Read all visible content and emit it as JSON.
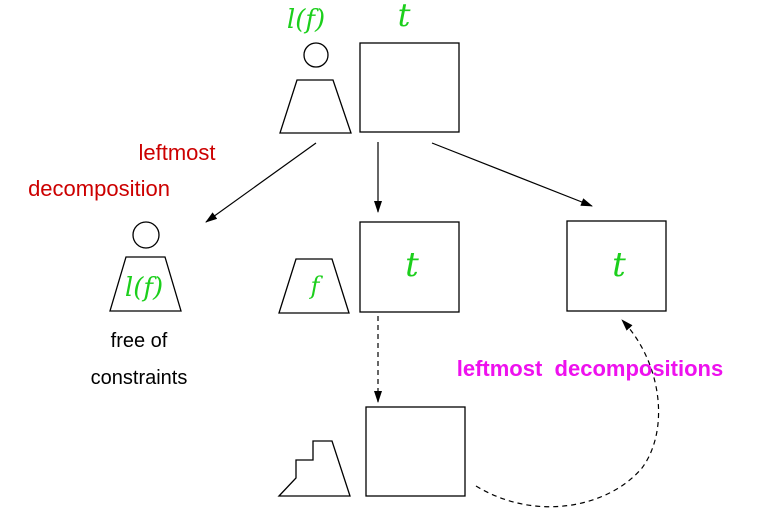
{
  "top_node": {
    "label_lf": "l(f)",
    "label_t": "t"
  },
  "left_branch": {
    "label_line1": "leftmost",
    "label_line2": "decomposition",
    "node_label": "l(f)",
    "note_line1": "free of",
    "note_line2": "constraints"
  },
  "middle_branch": {
    "shape_label": "f",
    "box_label": "t"
  },
  "right_branch": {
    "box_label": "t",
    "label": "leftmost  decompositions"
  },
  "colors": {
    "green": "#1ccf1c",
    "red": "#cc0000",
    "magenta": "#ee11ee",
    "ink": "#000000"
  }
}
